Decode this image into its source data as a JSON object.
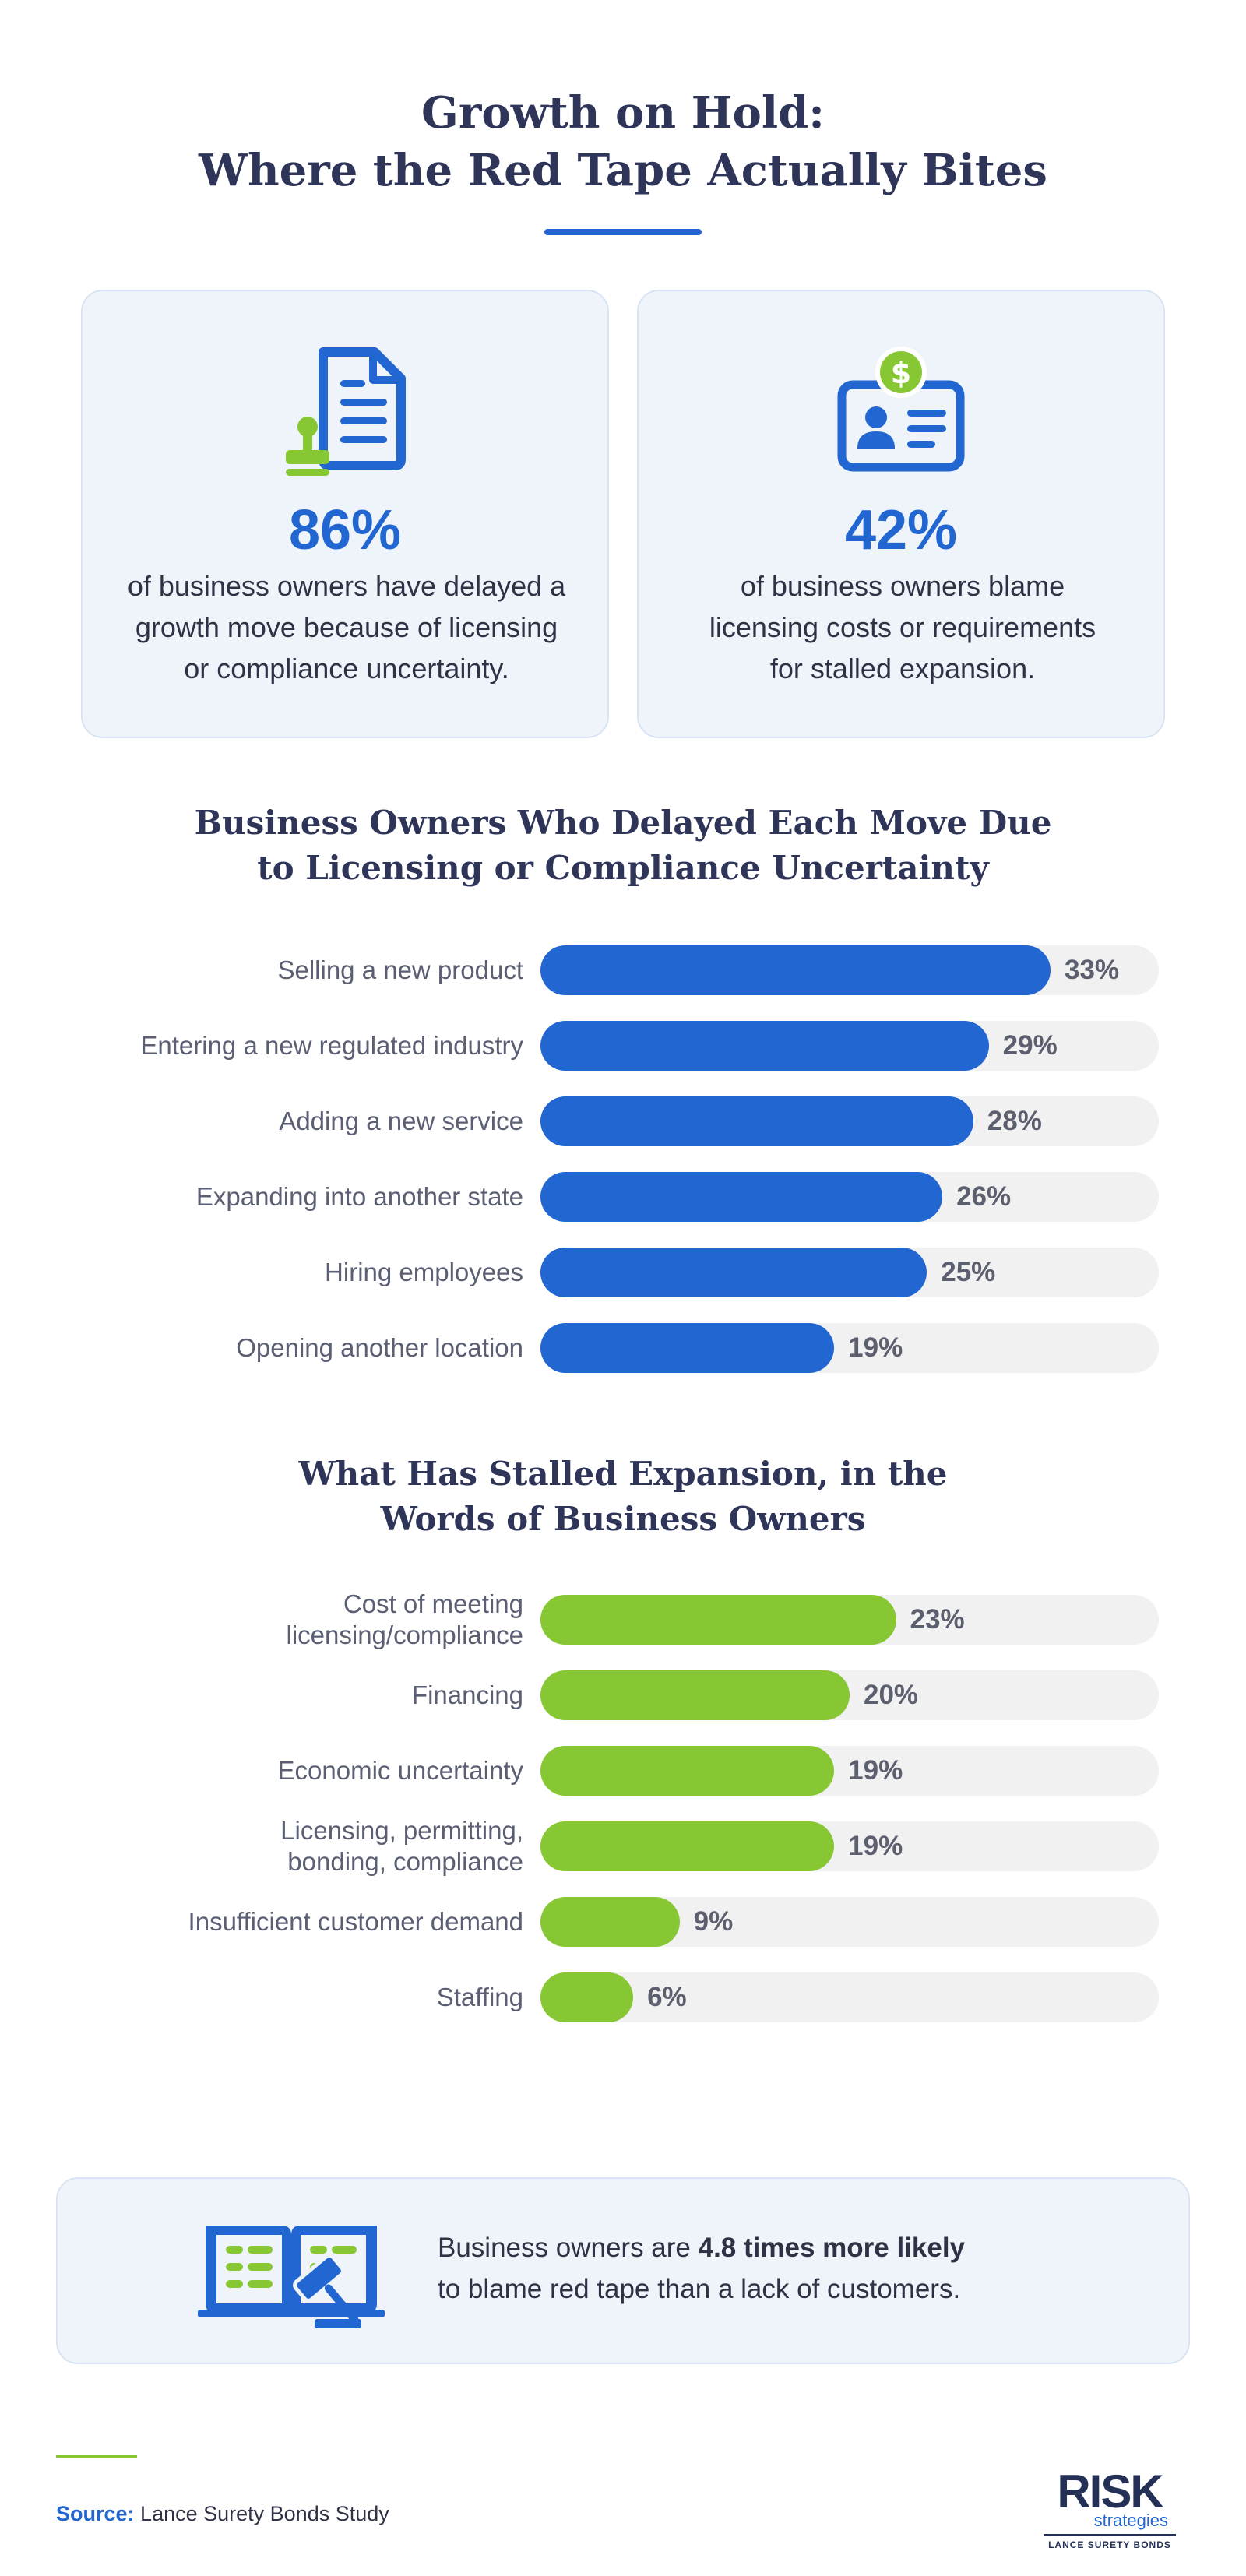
{
  "title": {
    "line1": "Growth on Hold:",
    "line2": "Where the Red Tape Actually Bites"
  },
  "stats": [
    {
      "value": "86%",
      "lines": [
        "of business owners have delayed a",
        "growth move because of licensing",
        "or compliance uncertainty."
      ],
      "icon": "document-stamp-icon"
    },
    {
      "value": "42%",
      "lines": [
        "of business owners blame",
        "licensing costs or requirements",
        "for stalled expansion."
      ],
      "icon": "license-dollar-icon"
    }
  ],
  "chart_data": [
    {
      "type": "bar",
      "orientation": "horizontal",
      "title": "Business Owners Who Delayed Each Move Due to Licensing or Compliance Uncertainty",
      "title_lines": [
        "Business Owners Who Delayed Each Move Due",
        "to Licensing or Compliance Uncertainty"
      ],
      "categories": [
        "Selling a new product",
        "Entering a new regulated industry",
        "Adding a new service",
        "Expanding into another state",
        "Hiring employees",
        "Opening another location"
      ],
      "category_lines": [
        [
          "Selling a new product"
        ],
        [
          "Entering a new regulated industry"
        ],
        [
          "Adding a new service"
        ],
        [
          "Expanding into another state"
        ],
        [
          "Hiring employees"
        ],
        [
          "Opening another location"
        ]
      ],
      "values": [
        33,
        29,
        28,
        26,
        25,
        19
      ],
      "value_labels": [
        "33%",
        "29%",
        "28%",
        "26%",
        "25%",
        "19%"
      ],
      "unit": "%",
      "xlim": [
        0,
        40
      ],
      "color": "#2166d1",
      "track_color": "#f1f1f2",
      "grid": false
    },
    {
      "type": "bar",
      "orientation": "horizontal",
      "title": "What Has Stalled Expansion, in the Words of Business Owners",
      "title_lines": [
        "What Has Stalled Expansion, in the",
        "Words of Business Owners"
      ],
      "categories": [
        "Cost of meeting licensing/compliance",
        "Financing",
        "Economic uncertainty",
        "Licensing, permitting, bonding, compliance",
        "Insufficient customer demand",
        "Staffing"
      ],
      "category_lines": [
        [
          "Cost of meeting",
          "licensing/compliance"
        ],
        [
          "Financing"
        ],
        [
          "Economic uncertainty"
        ],
        [
          "Licensing, permitting,",
          "bonding, compliance"
        ],
        [
          "Insufficient customer demand"
        ],
        [
          "Staffing"
        ]
      ],
      "values": [
        23,
        20,
        19,
        19,
        9,
        6
      ],
      "value_labels": [
        "23%",
        "20%",
        "19%",
        "19%",
        "9%",
        "6%"
      ],
      "unit": "%",
      "xlim": [
        0,
        40
      ],
      "color": "#87c734",
      "track_color": "#f1f1f2",
      "grid": false
    }
  ],
  "callout": {
    "icon": "book-gavel-icon",
    "prefix": "Business owners are ",
    "emphasis": "4.8 times more likely",
    "suffix": "to blame red tape than a lack of customers."
  },
  "source": {
    "label": "Source:",
    "text": "Lance Surety Bonds Study"
  },
  "logo": {
    "main": "RISK",
    "sub": "strategies",
    "foot": "LANCE SURETY BONDS"
  },
  "colors": {
    "accent_blue": "#2166d1",
    "accent_green": "#87c734",
    "heading": "#2f3559"
  }
}
